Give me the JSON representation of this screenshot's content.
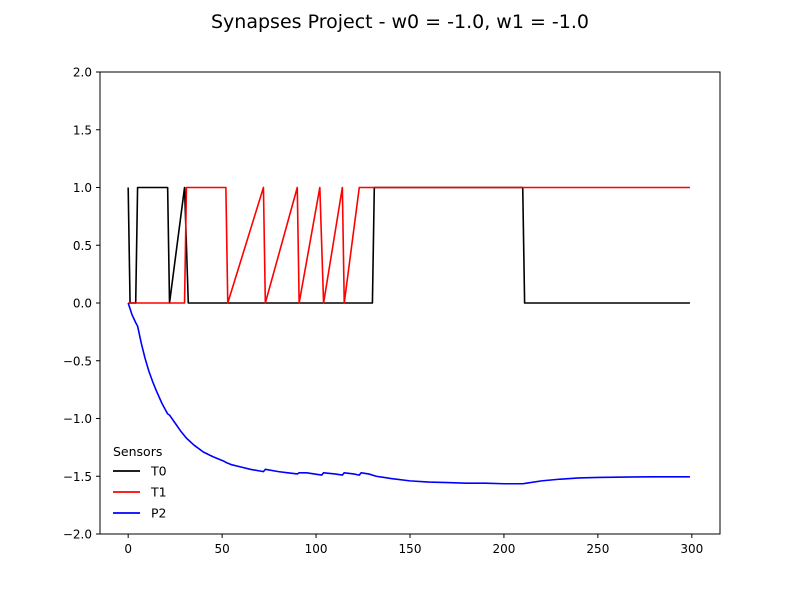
{
  "chart_data": {
    "type": "line",
    "title": "Synapses Project - w0 = -1.0, w1 = -1.0",
    "xlabel": "",
    "ylabel": "",
    "xlim": [
      -15,
      315
    ],
    "ylim": [
      -2.0,
      2.0
    ],
    "xticks": [
      0,
      50,
      100,
      150,
      200,
      250,
      300
    ],
    "yticks": [
      -2.0,
      -1.5,
      -1.0,
      -0.5,
      0.0,
      0.5,
      1.0,
      1.5,
      2.0
    ],
    "ytick_labels": [
      "−2.0",
      "−1.5",
      "−1.0",
      "−0.5",
      "0.0",
      "0.5",
      "1.0",
      "1.5",
      "2.0"
    ],
    "xtick_labels": [
      "0",
      "50",
      "100",
      "150",
      "200",
      "250",
      "300"
    ],
    "grid": false,
    "legend": {
      "title": "Sensors",
      "placement": "lower-left"
    },
    "series": [
      {
        "name": "T0",
        "color": "#000000",
        "x": [
          0,
          1,
          4,
          5,
          21,
          22,
          30,
          32,
          130,
          131,
          210,
          211,
          299
        ],
        "y": [
          1,
          0,
          0,
          1,
          1,
          0,
          1,
          0,
          0,
          1,
          1,
          0,
          0
        ]
      },
      {
        "name": "T1",
        "color": "#ff0000",
        "x": [
          0,
          30,
          31,
          52,
          53,
          72,
          73,
          90,
          91,
          102,
          104,
          114,
          115,
          123,
          124,
          299
        ],
        "y": [
          0,
          0,
          1,
          1,
          0,
          1,
          0,
          1,
          0,
          1,
          0,
          1,
          0,
          1,
          1,
          1
        ]
      },
      {
        "name": "P2",
        "color": "#0000ff",
        "x": [
          0,
          2,
          4,
          5,
          7,
          9,
          11,
          13,
          15,
          18,
          21,
          22,
          25,
          28,
          31,
          35,
          40,
          45,
          51,
          52,
          55,
          60,
          65,
          72,
          73,
          80,
          85,
          90,
          91,
          95,
          103,
          104,
          110,
          114,
          115,
          120,
          123,
          124,
          128,
          132,
          140,
          150,
          160,
          170,
          180,
          190,
          200,
          210,
          212,
          220,
          230,
          240,
          250,
          260,
          270,
          280,
          290,
          299
        ],
        "y": [
          0.0,
          -0.1,
          -0.17,
          -0.2,
          -0.35,
          -0.48,
          -0.59,
          -0.68,
          -0.76,
          -0.87,
          -0.96,
          -0.97,
          -1.04,
          -1.11,
          -1.17,
          -1.23,
          -1.29,
          -1.33,
          -1.37,
          -1.38,
          -1.4,
          -1.42,
          -1.44,
          -1.46,
          -1.44,
          -1.46,
          -1.47,
          -1.48,
          -1.47,
          -1.47,
          -1.49,
          -1.47,
          -1.48,
          -1.49,
          -1.47,
          -1.48,
          -1.49,
          -1.47,
          -1.48,
          -1.5,
          -1.52,
          -1.54,
          -1.55,
          -1.555,
          -1.56,
          -1.56,
          -1.565,
          -1.565,
          -1.56,
          -1.54,
          -1.525,
          -1.515,
          -1.51,
          -1.508,
          -1.506,
          -1.505,
          -1.505,
          -1.505
        ]
      }
    ]
  }
}
